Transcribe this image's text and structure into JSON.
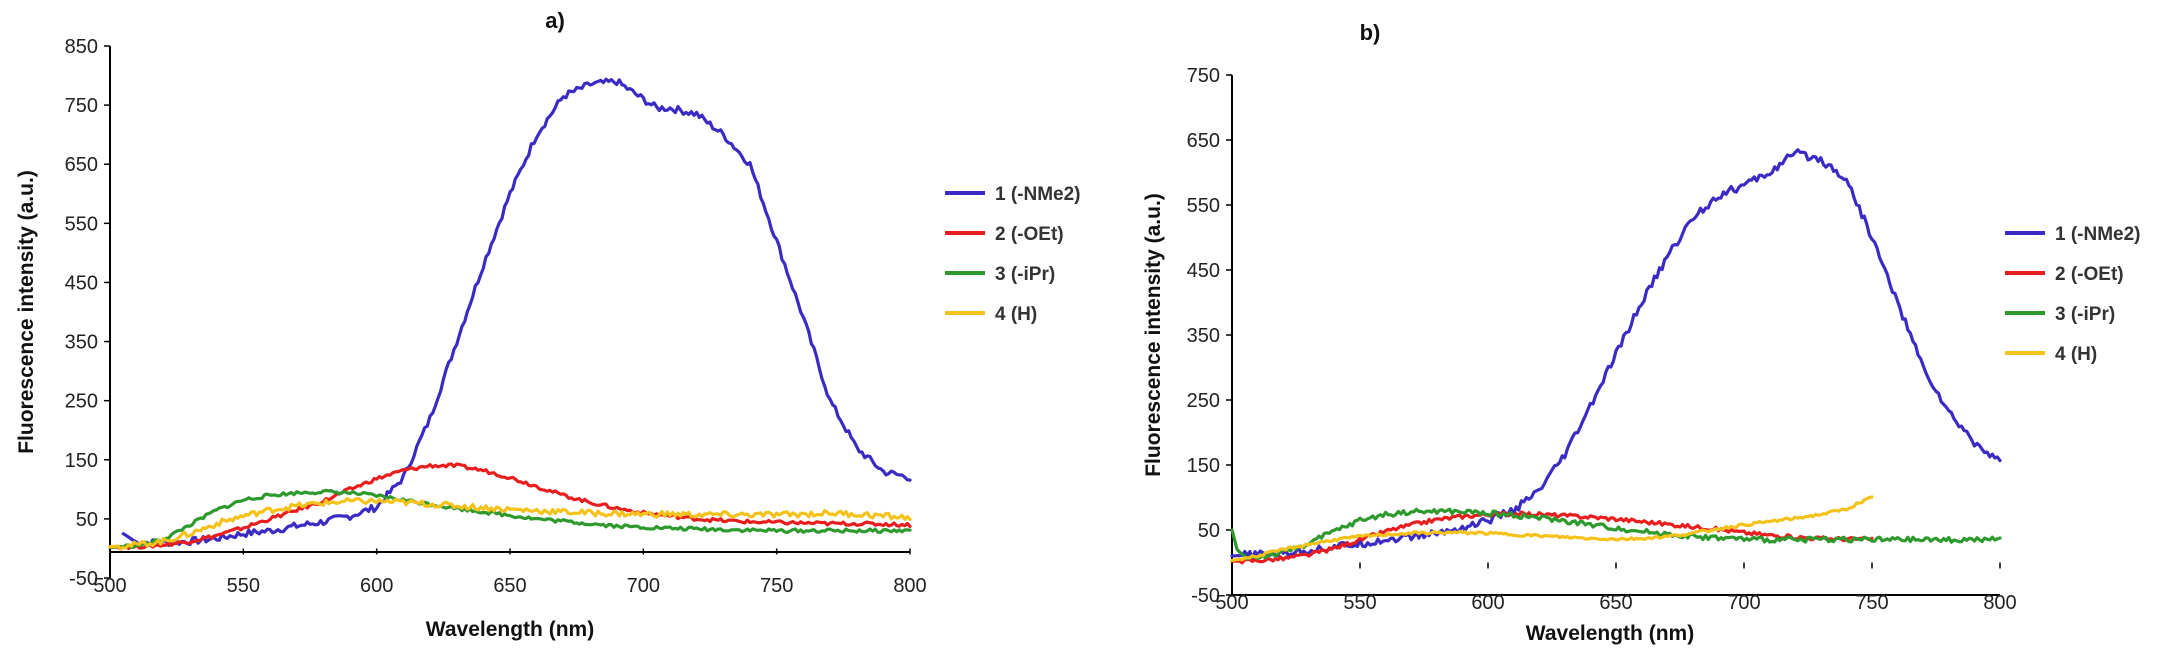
{
  "chart_data": [
    {
      "type": "line",
      "title": "a)",
      "xlabel": "Wavelength (nm)",
      "ylabel": "Fluorescence intensity (a.u.)",
      "xlim": [
        500,
        800
      ],
      "ylim": [
        -50,
        850
      ],
      "xticks": [
        500,
        550,
        600,
        650,
        700,
        750,
        800
      ],
      "yticks": [
        -50,
        50,
        150,
        250,
        350,
        450,
        550,
        650,
        750,
        850
      ],
      "xtick_labels": [
        "500",
        "550",
        "600",
        "650",
        "700",
        "750",
        "800"
      ],
      "ytick_labels": [
        "-50",
        "50",
        "150",
        "250",
        "350",
        "450",
        "550",
        "650",
        "750",
        "850"
      ],
      "grid": false,
      "legend_position": "right",
      "series": [
        {
          "name": "1  (-NMe2)",
          "color": "#3b2bc4",
          "noise": 6,
          "x": [
            505,
            510,
            520,
            530,
            540,
            550,
            560,
            570,
            580,
            590,
            600,
            610,
            620,
            630,
            640,
            650,
            660,
            670,
            675,
            680,
            690,
            700,
            705,
            710,
            720,
            730,
            740,
            750,
            760,
            770,
            780,
            790,
            800
          ],
          "y": [
            25,
            10,
            10,
            12,
            17,
            25,
            30,
            38,
            45,
            55,
            70,
            120,
            220,
            350,
            480,
            600,
            700,
            765,
            775,
            785,
            790,
            760,
            745,
            745,
            735,
            700,
            650,
            520,
            390,
            250,
            170,
            130,
            120
          ]
        },
        {
          "name": "2  (-OEt)",
          "color": "#e81e1e",
          "noise": 3,
          "x": [
            500,
            510,
            520,
            530,
            540,
            550,
            560,
            570,
            580,
            590,
            600,
            610,
            620,
            630,
            640,
            650,
            660,
            670,
            680,
            690,
            700,
            710,
            720,
            730,
            740,
            750,
            760,
            770,
            780,
            790,
            800
          ],
          "y": [
            2,
            3,
            6,
            12,
            22,
            35,
            50,
            65,
            80,
            100,
            118,
            132,
            140,
            140,
            132,
            120,
            105,
            90,
            78,
            68,
            60,
            55,
            50,
            47,
            45,
            44,
            43,
            42,
            42,
            41,
            40
          ]
        },
        {
          "name": "3  (-iPr)",
          "color": "#2e9a2e",
          "noise": 3,
          "x": [
            500,
            510,
            520,
            530,
            540,
            550,
            560,
            570,
            580,
            590,
            600,
            610,
            620,
            630,
            640,
            650,
            660,
            670,
            680,
            690,
            700,
            710,
            720,
            730,
            740,
            750,
            760,
            770,
            780,
            790,
            800
          ],
          "y": [
            2,
            5,
            15,
            40,
            65,
            82,
            90,
            94,
            96,
            94,
            89,
            82,
            75,
            68,
            62,
            56,
            50,
            46,
            42,
            38,
            36,
            34,
            33,
            32,
            31,
            30,
            30,
            30,
            30,
            30,
            30
          ]
        },
        {
          "name": "4  (H)",
          "color": "#f5c21b",
          "noise": 5,
          "x": [
            500,
            510,
            520,
            530,
            540,
            550,
            560,
            570,
            580,
            590,
            600,
            610,
            620,
            630,
            640,
            650,
            660,
            670,
            680,
            690,
            700,
            710,
            720,
            730,
            740,
            750,
            760,
            770,
            780,
            790,
            800
          ],
          "y": [
            3,
            6,
            12,
            25,
            42,
            55,
            65,
            72,
            77,
            80,
            80,
            78,
            75,
            72,
            69,
            66,
            64,
            62,
            60,
            59,
            58,
            58,
            57,
            57,
            57,
            57,
            58,
            60,
            58,
            55,
            52
          ]
        }
      ]
    },
    {
      "type": "line",
      "title": "b)",
      "xlabel": "Wavelength (nm)",
      "ylabel": "Fluorescence intensity (a.u.)",
      "xlim": [
        500,
        800
      ],
      "ylim": [
        -50,
        750
      ],
      "xticks": [
        500,
        550,
        600,
        650,
        700,
        750,
        800
      ],
      "yticks": [
        -50,
        50,
        150,
        250,
        350,
        450,
        550,
        650,
        750
      ],
      "xtick_labels": [
        "500",
        "550",
        "600",
        "650",
        "700",
        "750",
        "800"
      ],
      "ytick_labels": [
        "-50",
        "50",
        "150",
        "250",
        "350",
        "450",
        "550",
        "650",
        "750"
      ],
      "grid": false,
      "legend_position": "right",
      "series": [
        {
          "name": "1 (-NMe2)",
          "color": "#3b2bc4",
          "noise": 6,
          "x": [
            500,
            510,
            520,
            530,
            540,
            550,
            560,
            570,
            580,
            590,
            600,
            610,
            620,
            630,
            640,
            650,
            660,
            670,
            680,
            690,
            700,
            705,
            710,
            720,
            730,
            740,
            750,
            760,
            770,
            780,
            790,
            800
          ],
          "y": [
            10,
            12,
            15,
            19,
            24,
            29,
            35,
            40,
            45,
            53,
            65,
            80,
            110,
            165,
            240,
            320,
            400,
            470,
            530,
            565,
            580,
            590,
            600,
            630,
            620,
            590,
            500,
            400,
            300,
            230,
            185,
            155
          ]
        },
        {
          "name": "2 (-OEt)",
          "color": "#e81e1e",
          "noise": 3,
          "x": [
            500,
            510,
            520,
            530,
            540,
            550,
            560,
            570,
            580,
            590,
            600,
            610,
            620,
            630,
            640,
            650,
            660,
            670,
            680,
            690,
            700,
            710,
            720,
            730,
            740,
            750
          ],
          "y": [
            2,
            3,
            6,
            12,
            22,
            35,
            48,
            58,
            66,
            71,
            74,
            75,
            74,
            72,
            70,
            67,
            63,
            59,
            55,
            51,
            46,
            42,
            39,
            37,
            36,
            36
          ]
        },
        {
          "name": "3 (-iPr)",
          "color": "#2e9a2e",
          "noise": 4,
          "x": [
            500,
            502,
            505,
            510,
            520,
            530,
            540,
            550,
            560,
            570,
            580,
            590,
            600,
            610,
            620,
            630,
            640,
            650,
            660,
            670,
            680,
            690,
            700,
            710,
            720,
            730,
            740,
            750,
            760,
            770,
            780,
            790,
            800
          ],
          "y": [
            50,
            20,
            8,
            8,
            15,
            30,
            48,
            65,
            74,
            78,
            79,
            78,
            76,
            73,
            69,
            64,
            58,
            53,
            48,
            44,
            40,
            38,
            36,
            35,
            35,
            36,
            36,
            35,
            35,
            35,
            35,
            35,
            35
          ]
        },
        {
          "name": "4 (H)",
          "color": "#f5c21b",
          "noise": 2,
          "x": [
            500,
            510,
            520,
            530,
            540,
            550,
            560,
            570,
            580,
            590,
            600,
            610,
            620,
            630,
            640,
            650,
            660,
            670,
            680,
            690,
            700,
            710,
            720,
            730,
            740,
            745,
            750
          ],
          "y": [
            3,
            10,
            20,
            28,
            35,
            40,
            43,
            45,
            46,
            46,
            45,
            43,
            41,
            39,
            37,
            36,
            37,
            40,
            45,
            52,
            58,
            63,
            68,
            74,
            82,
            92,
            100
          ]
        }
      ]
    }
  ]
}
